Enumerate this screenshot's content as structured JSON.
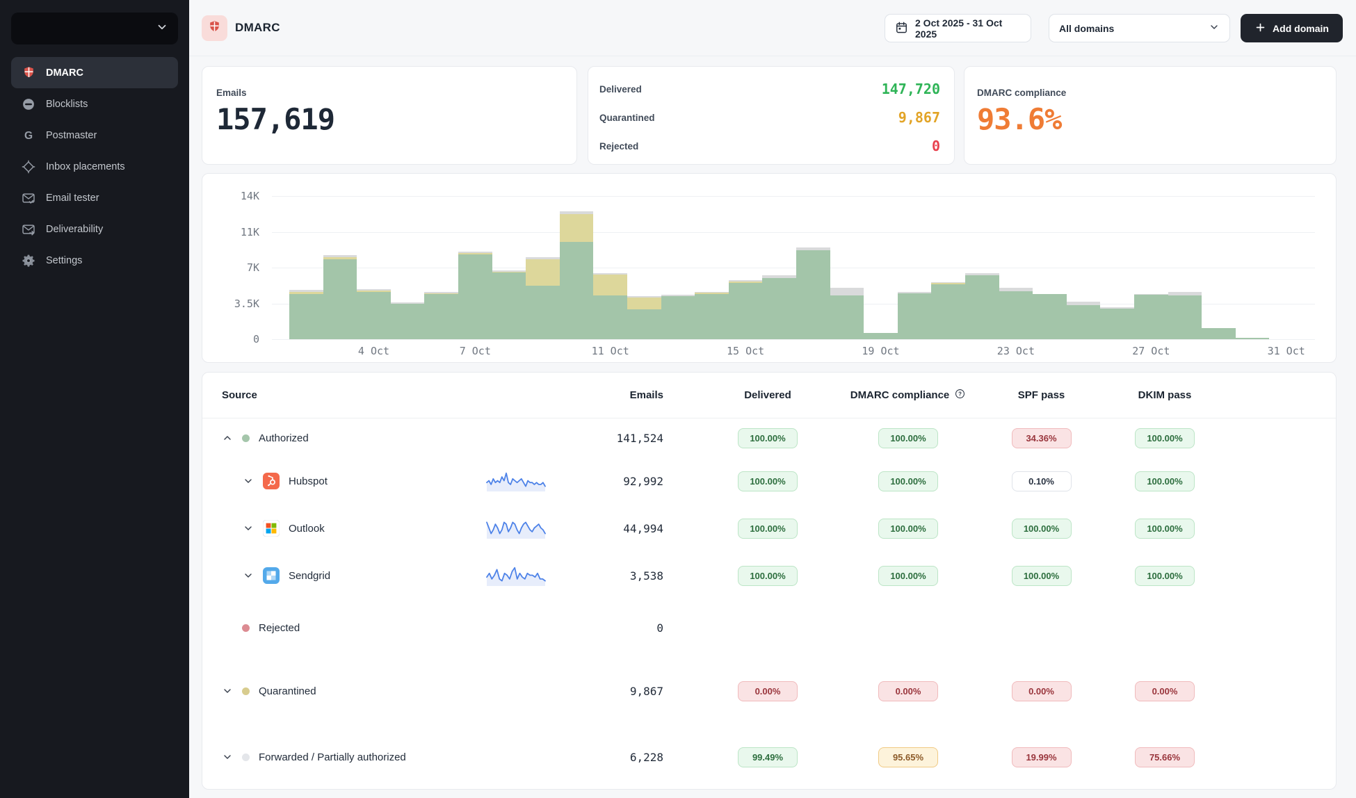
{
  "sidebar": {
    "items": [
      {
        "label": "DMARC",
        "icon": "shield-icon",
        "active": true
      },
      {
        "label": "Blocklists",
        "icon": "blocklist-icon",
        "active": false
      },
      {
        "label": "Postmaster",
        "icon": "postmaster-icon",
        "active": false
      },
      {
        "label": "Inbox placements",
        "icon": "inbox-placements-icon",
        "active": false
      },
      {
        "label": "Email tester",
        "icon": "email-tester-icon",
        "active": false
      },
      {
        "label": "Deliverability",
        "icon": "deliverability-icon",
        "active": false
      },
      {
        "label": "Settings",
        "icon": "settings-icon",
        "active": false
      }
    ]
  },
  "header": {
    "title": "DMARC",
    "date_range": "2 Oct 2025 - 31 Oct 2025",
    "domain_filter": "All domains",
    "add_domain_label": "Add domain"
  },
  "stats": {
    "emails": {
      "label": "Emails",
      "value": "157,619"
    },
    "delivery": [
      {
        "label": "Delivered",
        "value": "147,720",
        "color": "#2fb457"
      },
      {
        "label": "Quarantined",
        "value": "9,867",
        "color": "#e2a427"
      },
      {
        "label": "Rejected",
        "value": "0",
        "color": "#e8414e"
      }
    ],
    "compliance": {
      "label": "DMARC compliance",
      "value": "93.6%",
      "color": "#ef7c35"
    }
  },
  "chart_data": {
    "type": "bar",
    "stacked": true,
    "categories": [
      "2 Oct",
      "3 Oct",
      "4 Oct",
      "5 Oct",
      "6 Oct",
      "7 Oct",
      "8 Oct",
      "9 Oct",
      "10 Oct",
      "11 Oct",
      "12 Oct",
      "13 Oct",
      "14 Oct",
      "15 Oct",
      "16 Oct",
      "17 Oct",
      "18 Oct",
      "19 Oct",
      "20 Oct",
      "21 Oct",
      "22 Oct",
      "23 Oct",
      "24 Oct",
      "25 Oct",
      "26 Oct",
      "27 Oct",
      "28 Oct",
      "29 Oct",
      "30 Oct",
      "31 Oct"
    ],
    "series": [
      {
        "name": "Delivered",
        "color": "#a3c5a9",
        "values": [
          4400,
          7800,
          4600,
          3500,
          4400,
          8300,
          6500,
          5200,
          9500,
          4300,
          2900,
          4200,
          4450,
          5500,
          6000,
          8700,
          4250,
          600,
          4500,
          5400,
          6250,
          4700,
          4400,
          3350,
          3000,
          4350,
          4300,
          1100,
          150,
          0
        ]
      },
      {
        "name": "Quarantined",
        "color": "#ddd79b",
        "values": [
          200,
          200,
          150,
          0,
          100,
          100,
          100,
          2600,
          2750,
          2000,
          1200,
          0,
          100,
          150,
          0,
          0,
          0,
          0,
          0,
          100,
          0,
          0,
          0,
          0,
          0,
          0,
          0,
          0,
          0,
          0
        ]
      },
      {
        "name": "Forwarded",
        "color": "#d9dadb",
        "values": [
          200,
          200,
          150,
          100,
          100,
          150,
          150,
          200,
          250,
          150,
          100,
          150,
          100,
          150,
          250,
          300,
          750,
          0,
          100,
          100,
          200,
          350,
          50,
          350,
          100,
          50,
          300,
          0,
          0,
          0
        ]
      }
    ],
    "ylim": [
      0,
      14000
    ],
    "yticks": [
      {
        "value": 0,
        "label": "0"
      },
      {
        "value": 3500,
        "label": "3.5K"
      },
      {
        "value": 7000,
        "label": "7K"
      },
      {
        "value": 10500,
        "label": "11K"
      },
      {
        "value": 14000,
        "label": "14K"
      }
    ],
    "xticks": [
      {
        "index": 2,
        "label": "4 Oct"
      },
      {
        "index": 5,
        "label": "7 Oct"
      },
      {
        "index": 9,
        "label": "11 Oct"
      },
      {
        "index": 13,
        "label": "15 Oct"
      },
      {
        "index": 17,
        "label": "19 Oct"
      },
      {
        "index": 21,
        "label": "23 Oct"
      },
      {
        "index": 25,
        "label": "27 Oct"
      },
      {
        "index": 29,
        "label": "31 Oct"
      }
    ],
    "grid": true,
    "legend": false,
    "title": ""
  },
  "table": {
    "columns": [
      "Source",
      "Emails",
      "Delivered",
      "DMARC compliance",
      "SPF pass",
      "DKIM pass"
    ],
    "rows": [
      {
        "type": "group",
        "label": "Authorized",
        "dot": "#a5c6ab",
        "chevron": "up",
        "emails": "141,524",
        "badges": [
          {
            "text": "100.00%",
            "tone": "green"
          },
          {
            "text": "100.00%",
            "tone": "green"
          },
          {
            "text": "34.36%",
            "tone": "red"
          },
          {
            "text": "100.00%",
            "tone": "green"
          }
        ]
      },
      {
        "type": "sender",
        "label": "Hubspot",
        "brand": "hubspot-icon",
        "chevron": "down",
        "emails": "92,992",
        "sparkline": [
          4,
          5,
          3,
          6,
          4,
          5,
          4,
          7,
          5,
          9,
          4,
          3,
          6,
          5,
          4,
          5,
          6,
          4,
          2,
          5,
          4,
          4,
          3,
          4,
          3,
          3,
          4,
          2
        ],
        "badges": [
          {
            "text": "100.00%",
            "tone": "green"
          },
          {
            "text": "100.00%",
            "tone": "green"
          },
          {
            "text": "0.10%",
            "tone": "neutral"
          },
          {
            "text": "100.00%",
            "tone": "green"
          }
        ]
      },
      {
        "type": "sender",
        "label": "Outlook",
        "brand": "outlook-icon",
        "chevron": "down",
        "emails": "44,994",
        "sparkline": [
          8,
          5,
          2,
          4,
          7,
          5,
          2,
          4,
          8,
          7,
          3,
          5,
          8,
          7,
          4,
          2,
          5,
          7,
          8,
          6,
          4,
          3,
          5,
          6,
          7,
          5,
          4,
          2
        ],
        "badges": [
          {
            "text": "100.00%",
            "tone": "green"
          },
          {
            "text": "100.00%",
            "tone": "green"
          },
          {
            "text": "100.00%",
            "tone": "green"
          },
          {
            "text": "100.00%",
            "tone": "green"
          }
        ]
      },
      {
        "type": "sender",
        "label": "Sendgrid",
        "brand": "sendgrid-icon",
        "chevron": "down",
        "emails": "3,538",
        "sparkline": [
          4,
          6,
          3,
          5,
          8,
          3,
          2,
          6,
          5,
          3,
          7,
          9,
          3,
          6,
          4,
          3,
          6,
          5,
          5,
          4,
          6,
          3,
          3,
          2
        ],
        "badges": [
          {
            "text": "100.00%",
            "tone": "green"
          },
          {
            "text": "100.00%",
            "tone": "green"
          },
          {
            "text": "100.00%",
            "tone": "green"
          },
          {
            "text": "100.00%",
            "tone": "green"
          }
        ]
      },
      {
        "type": "group",
        "label": "Rejected",
        "dot": "#dc8b92",
        "chevron": null,
        "emails": "0",
        "badges": []
      },
      {
        "type": "group",
        "label": "Quarantined",
        "dot": "#d8cc8e",
        "chevron": "down",
        "emails": "9,867",
        "badges": [
          {
            "text": "0.00%",
            "tone": "red"
          },
          {
            "text": "0.00%",
            "tone": "red"
          },
          {
            "text": "0.00%",
            "tone": "red"
          },
          {
            "text": "0.00%",
            "tone": "red"
          }
        ]
      },
      {
        "type": "group",
        "label": "Forwarded / Partially authorized",
        "dot": "#e4e6ea",
        "chevron": "down",
        "emails": "6,228",
        "badges": [
          {
            "text": "99.49%",
            "tone": "green"
          },
          {
            "text": "95.65%",
            "tone": "yellow"
          },
          {
            "text": "19.99%",
            "tone": "red"
          },
          {
            "text": "75.66%",
            "tone": "red"
          }
        ]
      }
    ]
  }
}
